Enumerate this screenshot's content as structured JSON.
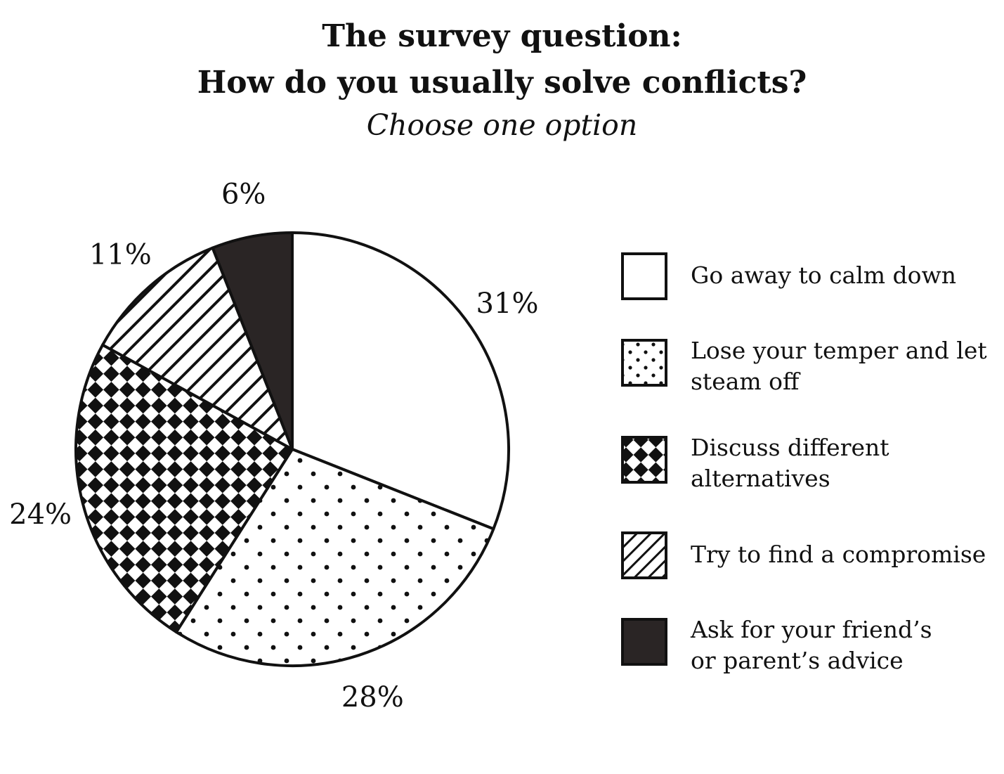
{
  "chart_data": {
    "type": "pie",
    "title": "The survey question:",
    "title_line2": "How do you usually solve conflicts?",
    "subtitle": "Choose one option",
    "slices": [
      {
        "label": "Go away to calm down",
        "value": 31,
        "value_label": "31%",
        "pattern": "none"
      },
      {
        "label": "Lose your temper and let steam off",
        "value": 28,
        "value_label": "28%",
        "pattern": "dots"
      },
      {
        "label": "Discuss different alternatives",
        "value": 24,
        "value_label": "24%",
        "pattern": "checker"
      },
      {
        "label": "Try to find a compromise",
        "value": 11,
        "value_label": "11%",
        "pattern": "stripes"
      },
      {
        "label": "Ask for your friend’s or parent’s advice",
        "value": 6,
        "value_label": "6%",
        "pattern": "solid"
      }
    ],
    "legend": [
      {
        "lines": [
          "Go away to calm down"
        ],
        "pattern": "none"
      },
      {
        "lines": [
          "Lose your temper and let",
          "steam off"
        ],
        "pattern": "dots"
      },
      {
        "lines": [
          "Discuss different",
          "alternatives"
        ],
        "pattern": "checker"
      },
      {
        "lines": [
          "Try to find a compromise"
        ],
        "pattern": "stripes"
      },
      {
        "lines": [
          "Ask for your friend’s",
          "or parent’s advice"
        ],
        "pattern": "solid"
      }
    ],
    "legend_position": "right",
    "start_angle": "12 o'clock",
    "direction": "clockwise",
    "colors": {
      "ink": "#111111",
      "solid": "#2a2525",
      "background": "#ffffff"
    }
  }
}
